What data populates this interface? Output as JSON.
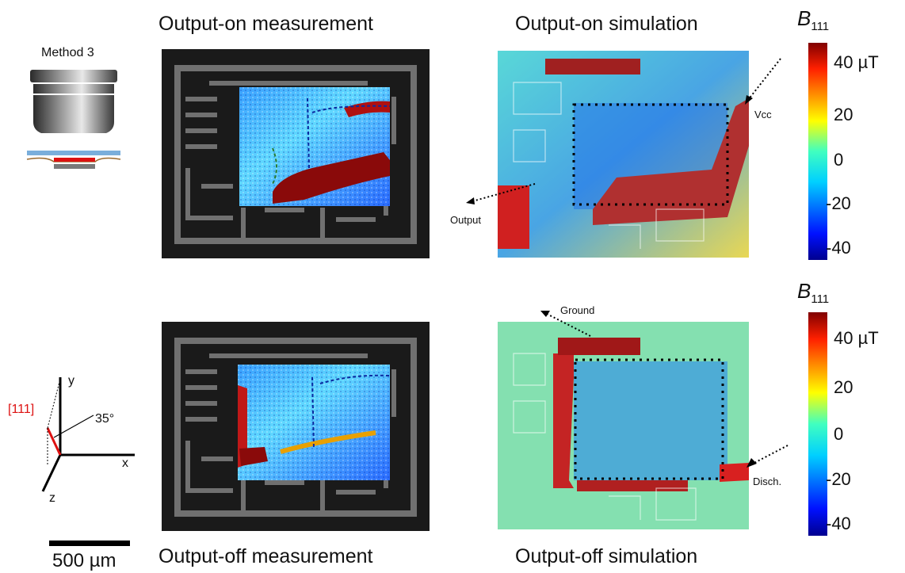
{
  "titles": {
    "on_measurement": "Output-on measurement",
    "on_simulation": "Output-on simulation",
    "off_measurement": "Output-off measurement",
    "off_simulation": "Output-off simulation"
  },
  "method_label": "Method 3",
  "axes": {
    "x": "x",
    "y": "y",
    "z": "z",
    "direction": "[111]",
    "angle": "35°"
  },
  "scale_bar": "500 µm",
  "annotations": {
    "vcc": "Vcc",
    "output": "Output",
    "ground": "Ground",
    "disch": "Disch."
  },
  "colorbar": {
    "symbol": "B",
    "subscript": "111",
    "ticks": [
      "40 µT",
      "20",
      "0",
      "-20",
      "-40"
    ],
    "tick_values": [
      40,
      20,
      0,
      -20,
      -40
    ],
    "range": [
      -50,
      50
    ]
  },
  "colors": {
    "chip_bg": "#1a1a1a",
    "trace": "#707070",
    "sim_base": "#5fd0b8",
    "accent_red": "#cc1010"
  }
}
